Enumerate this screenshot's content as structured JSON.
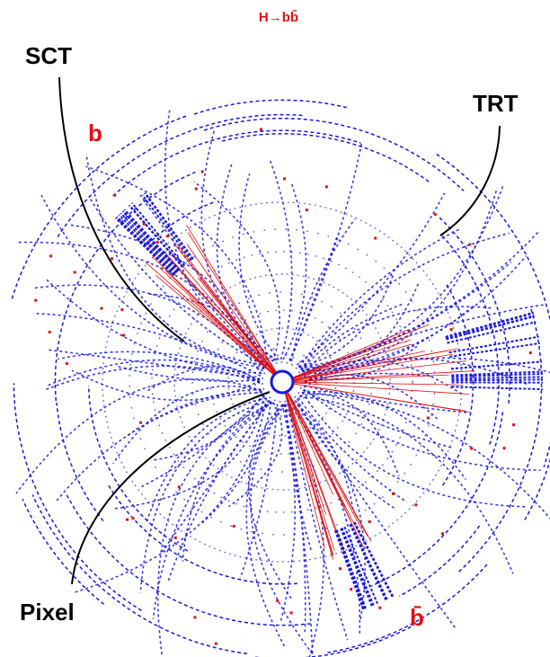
{
  "title": "H→bb̄",
  "labels": {
    "sct": "SCT",
    "trt": "TRT",
    "pixel": "Pixel",
    "b_jet": "b",
    "bbar_jet": "b̄"
  }
}
